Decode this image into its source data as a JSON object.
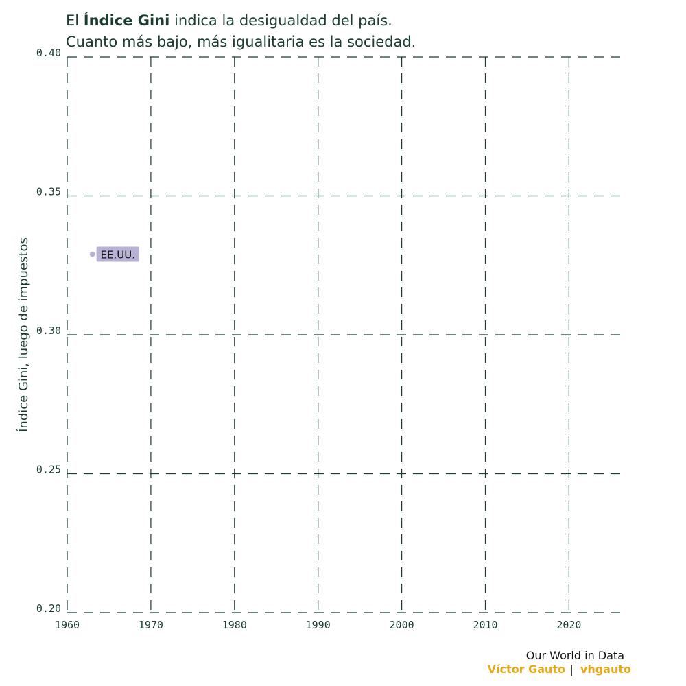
{
  "title": {
    "part1": "El ",
    "bold": "Índice Gini",
    "part2": " indica la desigualdad del país.",
    "line2": "Cuanto más bajo, más igualitaria es la sociedad."
  },
  "ylabel": "Índice Gini, luego de impuestos",
  "credits": {
    "source": "Our World in Data",
    "author": "Víctor Gauto",
    "separator": "|",
    "handle": "vhgauto",
    "author_color": "#e6a817"
  },
  "colors": {
    "text": "#1a3d2e",
    "grid": "#1a3d2e",
    "point": "#b8b3d4",
    "label_bg": "#b8b3d4"
  },
  "chart_data": {
    "type": "scatter",
    "xlim": [
      1960,
      2027
    ],
    "ylim": [
      0.2,
      0.4
    ],
    "x_ticks": [
      1960,
      1970,
      1980,
      1990,
      2000,
      2010,
      2020
    ],
    "y_ticks": [
      "0.20",
      "0.25",
      "0.30",
      "0.35",
      "0.40"
    ],
    "grid": true,
    "series": [
      {
        "name": "EE.UU.",
        "points": [
          {
            "x": 1963,
            "y": 0.329
          }
        ]
      }
    ]
  }
}
